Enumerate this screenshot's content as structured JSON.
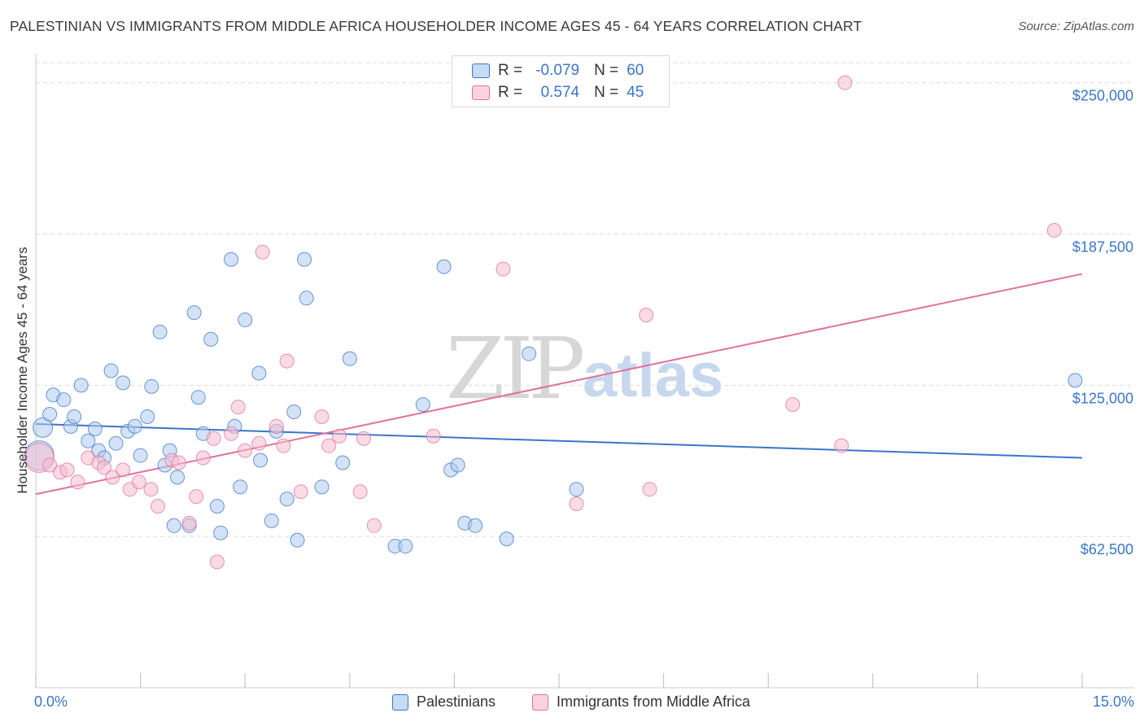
{
  "title": "PALESTINIAN VS IMMIGRANTS FROM MIDDLE AFRICA HOUSEHOLDER INCOME AGES 45 - 64 YEARS CORRELATION CHART",
  "source": "Source: ZipAtlas.com",
  "watermark": {
    "zip": "ZIP",
    "atlas": "atlas"
  },
  "colors": {
    "blue": "#3b76c6",
    "blue_fill": "#aecbf0",
    "pink": "#e07399",
    "pink_fill": "#f6bccf",
    "grid": "#dcdcdc"
  },
  "stats_legend": [
    {
      "r_label": "R =",
      "r_value": "-0.079",
      "n_label": "N =",
      "n_value": "60"
    },
    {
      "r_label": "R =",
      "r_value": "0.574",
      "n_label": "N =",
      "n_value": "45"
    }
  ],
  "chart_data": {
    "type": "scatter",
    "title": "PALESTINIAN VS IMMIGRANTS FROM MIDDLE AFRICA HOUSEHOLDER INCOME AGES 45 - 64 YEARS CORRELATION CHART",
    "xlabel": "",
    "ylabel": "Householder Income Ages 45 - 64 years",
    "xlim": [
      0,
      15
    ],
    "ylim": [
      0,
      262000
    ],
    "x_tick_labels": [
      "0.0%",
      "15.0%"
    ],
    "y_ticks": [
      {
        "value": 62500,
        "label": "$62,500"
      },
      {
        "value": 125000,
        "label": "$125,000"
      },
      {
        "value": 187500,
        "label": "$187,500"
      },
      {
        "value": 250000,
        "label": "$250,000"
      }
    ],
    "grid": true,
    "legend_position": "bottom",
    "series": [
      {
        "name": "Palestinians",
        "color": "#3b76c6",
        "r": -0.079,
        "n": 60,
        "trend": {
          "x0": 0.0,
          "y0": 109000,
          "x1": 15.0,
          "y1": 95000
        },
        "points": [
          [
            0.05,
            96000,
            "large"
          ],
          [
            0.1,
            107500,
            "med"
          ],
          [
            0.2,
            113000
          ],
          [
            0.25,
            121000
          ],
          [
            0.4,
            119000
          ],
          [
            0.5,
            108000
          ],
          [
            0.55,
            112000
          ],
          [
            0.65,
            125000
          ],
          [
            0.75,
            102000
          ],
          [
            0.85,
            107000
          ],
          [
            0.9,
            98000
          ],
          [
            0.98,
            95000
          ],
          [
            1.08,
            131000
          ],
          [
            1.15,
            101000
          ],
          [
            1.25,
            126000
          ],
          [
            1.32,
            106000
          ],
          [
            1.42,
            108000
          ],
          [
            1.5,
            96000
          ],
          [
            1.6,
            112000
          ],
          [
            1.66,
            124500
          ],
          [
            1.78,
            147000
          ],
          [
            1.85,
            92000
          ],
          [
            1.92,
            98000
          ],
          [
            1.98,
            67000
          ],
          [
            2.03,
            87000
          ],
          [
            2.2,
            67000
          ],
          [
            2.27,
            155000
          ],
          [
            2.33,
            120000
          ],
          [
            2.4,
            105000
          ],
          [
            2.51,
            144000
          ],
          [
            2.6,
            75000
          ],
          [
            2.65,
            64000
          ],
          [
            2.8,
            177000
          ],
          [
            2.85,
            108000
          ],
          [
            2.93,
            83000
          ],
          [
            3.0,
            152000
          ],
          [
            3.2,
            130000
          ],
          [
            3.22,
            94000
          ],
          [
            3.38,
            69000
          ],
          [
            3.45,
            106000
          ],
          [
            3.6,
            78000
          ],
          [
            3.7,
            114000
          ],
          [
            3.75,
            61000
          ],
          [
            3.85,
            177000
          ],
          [
            3.88,
            161000
          ],
          [
            4.1,
            83000
          ],
          [
            4.4,
            93000
          ],
          [
            4.5,
            136000
          ],
          [
            5.15,
            58500
          ],
          [
            5.3,
            58500
          ],
          [
            5.55,
            117000
          ],
          [
            5.85,
            174000
          ],
          [
            5.95,
            90000
          ],
          [
            6.05,
            92000
          ],
          [
            6.15,
            68000
          ],
          [
            6.3,
            67000
          ],
          [
            6.75,
            61500
          ],
          [
            7.07,
            138000
          ],
          [
            7.75,
            82000
          ],
          [
            14.9,
            127000
          ]
        ]
      },
      {
        "name": "Immigrants from Middle Africa",
        "color": "#e07399",
        "r": 0.574,
        "n": 45,
        "trend": {
          "x0": 0.0,
          "y0": 80000,
          "x1": 15.0,
          "y1": 171000
        },
        "points": [
          [
            0.05,
            95000,
            "large"
          ],
          [
            0.2,
            92000
          ],
          [
            0.35,
            89000
          ],
          [
            0.45,
            90000
          ],
          [
            0.6,
            85000
          ],
          [
            0.75,
            95000
          ],
          [
            0.9,
            93000
          ],
          [
            0.98,
            91000
          ],
          [
            1.1,
            87000
          ],
          [
            1.25,
            90000
          ],
          [
            1.35,
            82000
          ],
          [
            1.48,
            85000
          ],
          [
            1.65,
            82000
          ],
          [
            1.75,
            75000
          ],
          [
            1.95,
            94000
          ],
          [
            2.05,
            93000
          ],
          [
            2.2,
            68000
          ],
          [
            2.3,
            79000
          ],
          [
            2.4,
            95000
          ],
          [
            2.55,
            103000
          ],
          [
            2.6,
            52000
          ],
          [
            2.8,
            105000
          ],
          [
            2.9,
            116000
          ],
          [
            3.0,
            98000
          ],
          [
            3.2,
            101000
          ],
          [
            3.25,
            180000
          ],
          [
            3.45,
            108000
          ],
          [
            3.55,
            100000
          ],
          [
            3.6,
            135000
          ],
          [
            3.8,
            81000
          ],
          [
            4.1,
            112000
          ],
          [
            4.2,
            100000
          ],
          [
            4.35,
            104000
          ],
          [
            4.65,
            81000
          ],
          [
            4.7,
            103000
          ],
          [
            4.85,
            67000
          ],
          [
            5.7,
            104000
          ],
          [
            6.7,
            173000
          ],
          [
            7.75,
            76000
          ],
          [
            8.75,
            154000
          ],
          [
            8.8,
            82000
          ],
          [
            10.85,
            117000
          ],
          [
            11.55,
            100000
          ],
          [
            11.6,
            250000
          ],
          [
            14.6,
            189000
          ]
        ]
      }
    ]
  }
}
